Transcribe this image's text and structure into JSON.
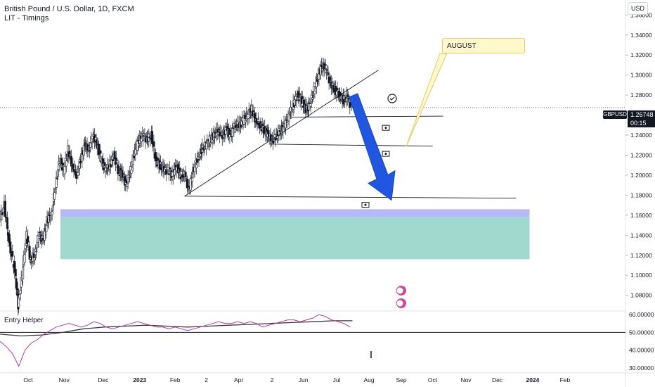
{
  "legend": {
    "title": "British Pound / U.S. Dollar, 1D, FXCM",
    "indicator": "LIT - Timings"
  },
  "sub_legend": "Entry Helper",
  "currency": "USD",
  "symbol_tag": "GBPUSD",
  "last_price": "1.26748",
  "countdown": "00:15",
  "annotation": "AUGUST",
  "colors": {
    "up": "#131722",
    "down": "#131722",
    "demand_zone": "#9dd7cc",
    "zone_top": "#b2b5f5",
    "arrow": "#2157e0",
    "rsi": "#b03a9f",
    "rsi_ma": "#3a3a3a"
  },
  "chart_data": {
    "type": "candlestick",
    "main_axis": {
      "ticks": [
        "1.36000",
        "1.34000",
        "1.32000",
        "1.30000",
        "1.28000",
        "1.26000",
        "1.24000",
        "1.22000",
        "1.20000",
        "1.18000",
        "1.16000",
        "1.14000",
        "1.12000",
        "1.10000",
        "1.08000"
      ],
      "range": [
        1.065,
        1.375
      ]
    },
    "sub_axis": {
      "ticks": [
        "60.00000",
        "50.00000",
        "40.00000",
        "30.00000"
      ],
      "range": [
        28,
        62
      ]
    },
    "x_ticks": [
      "Oct",
      "Nov",
      "Dec",
      "2023",
      "Feb",
      "2",
      "Apr",
      "2",
      "Jun",
      "Jul",
      "Aug",
      "Sep",
      "Oct",
      "Nov",
      "Dec",
      "2024",
      "Feb"
    ],
    "x_range": [
      0,
      60
    ],
    "x_tick_positions": [
      0,
      3.45,
      7.2,
      10.7,
      14.1,
      17.1,
      20.2,
      23.4,
      26.4,
      29.6,
      32.7,
      35.8,
      38.8,
      42.0,
      45.0,
      48.4,
      51.5
    ],
    "price_path": [
      [
        0,
        1.155
      ],
      [
        0.5,
        1.17
      ],
      [
        1,
        1.13
      ],
      [
        1.5,
        1.105
      ],
      [
        1.8,
        1.07
      ],
      [
        2.2,
        1.1
      ],
      [
        2.6,
        1.14
      ],
      [
        3.0,
        1.115
      ],
      [
        3.4,
        1.12
      ],
      [
        3.8,
        1.14
      ],
      [
        4.2,
        1.135
      ],
      [
        4.6,
        1.155
      ],
      [
        5.0,
        1.16
      ],
      [
        5.4,
        1.19
      ],
      [
        5.8,
        1.215
      ],
      [
        6.2,
        1.205
      ],
      [
        6.6,
        1.225
      ],
      [
        7.0,
        1.21
      ],
      [
        7.4,
        1.2
      ],
      [
        7.8,
        1.215
      ],
      [
        8.2,
        1.23
      ],
      [
        8.6,
        1.225
      ],
      [
        9.0,
        1.24
      ],
      [
        9.4,
        1.23
      ],
      [
        9.8,
        1.215
      ],
      [
        10.2,
        1.205
      ],
      [
        10.6,
        1.21
      ],
      [
        11.0,
        1.22
      ],
      [
        11.4,
        1.205
      ],
      [
        11.8,
        1.2
      ],
      [
        12.2,
        1.19
      ],
      [
        12.6,
        1.205
      ],
      [
        13.0,
        1.225
      ],
      [
        13.4,
        1.235
      ],
      [
        13.8,
        1.24
      ],
      [
        14.2,
        1.235
      ],
      [
        14.6,
        1.24
      ],
      [
        15.0,
        1.215
      ],
      [
        15.4,
        1.21
      ],
      [
        15.8,
        1.205
      ],
      [
        16.2,
        1.205
      ],
      [
        16.6,
        1.2
      ],
      [
        17.0,
        1.21
      ],
      [
        17.4,
        1.2
      ],
      [
        17.8,
        1.2
      ],
      [
        18.2,
        1.185
      ],
      [
        18.6,
        1.205
      ],
      [
        19.0,
        1.215
      ],
      [
        19.4,
        1.225
      ],
      [
        19.8,
        1.23
      ],
      [
        20.2,
        1.235
      ],
      [
        20.6,
        1.24
      ],
      [
        21.0,
        1.245
      ],
      [
        21.4,
        1.24
      ],
      [
        21.8,
        1.245
      ],
      [
        22.2,
        1.24
      ],
      [
        22.6,
        1.25
      ],
      [
        23.0,
        1.25
      ],
      [
        23.4,
        1.255
      ],
      [
        23.8,
        1.26
      ],
      [
        24.2,
        1.265
      ],
      [
        24.6,
        1.255
      ],
      [
        25.0,
        1.25
      ],
      [
        25.4,
        1.245
      ],
      [
        25.8,
        1.24
      ],
      [
        26.2,
        1.235
      ],
      [
        26.6,
        1.24
      ],
      [
        27.0,
        1.245
      ],
      [
        27.4,
        1.25
      ],
      [
        27.8,
        1.26
      ],
      [
        28.2,
        1.27
      ],
      [
        28.6,
        1.28
      ],
      [
        29.0,
        1.275
      ],
      [
        29.4,
        1.265
      ],
      [
        29.8,
        1.27
      ],
      [
        30.2,
        1.285
      ],
      [
        30.6,
        1.3
      ],
      [
        31.0,
        1.31
      ],
      [
        31.4,
        1.305
      ],
      [
        31.8,
        1.29
      ],
      [
        32.2,
        1.285
      ],
      [
        32.6,
        1.28
      ],
      [
        33.0,
        1.275
      ],
      [
        33.4,
        1.278
      ],
      [
        33.8,
        1.2675
      ]
    ],
    "rsi_path": [
      [
        0,
        45
      ],
      [
        0.6,
        42
      ],
      [
        1.2,
        38
      ],
      [
        1.8,
        31
      ],
      [
        2.4,
        40
      ],
      [
        3.0,
        44
      ],
      [
        3.6,
        46
      ],
      [
        4.2,
        49
      ],
      [
        4.8,
        51
      ],
      [
        5.4,
        53
      ],
      [
        6.0,
        54
      ],
      [
        6.6,
        55
      ],
      [
        7.2,
        54
      ],
      [
        7.8,
        53
      ],
      [
        8.4,
        54
      ],
      [
        9.0,
        56
      ],
      [
        9.6,
        55
      ],
      [
        10.2,
        53
      ],
      [
        10.8,
        52
      ],
      [
        11.4,
        53
      ],
      [
        12.0,
        54
      ],
      [
        12.6,
        55
      ],
      [
        13.2,
        56
      ],
      [
        13.8,
        55
      ],
      [
        14.4,
        54
      ],
      [
        15.0,
        53
      ],
      [
        15.6,
        53
      ],
      [
        16.2,
        52
      ],
      [
        16.8,
        53
      ],
      [
        17.4,
        52
      ],
      [
        18.0,
        51
      ],
      [
        18.6,
        52
      ],
      [
        19.2,
        53
      ],
      [
        19.8,
        54
      ],
      [
        20.4,
        55
      ],
      [
        21.0,
        56
      ],
      [
        21.6,
        55
      ],
      [
        22.2,
        55
      ],
      [
        22.8,
        56
      ],
      [
        23.4,
        55
      ],
      [
        24.0,
        56
      ],
      [
        24.6,
        55
      ],
      [
        25.2,
        53
      ],
      [
        25.8,
        54
      ],
      [
        26.4,
        55
      ],
      [
        27.0,
        56
      ],
      [
        27.6,
        57
      ],
      [
        28.2,
        57
      ],
      [
        28.8,
        56
      ],
      [
        29.4,
        57
      ],
      [
        30.0,
        58
      ],
      [
        30.6,
        60
      ],
      [
        31.2,
        59
      ],
      [
        31.8,
        57
      ],
      [
        32.4,
        56
      ],
      [
        33.0,
        55
      ],
      [
        33.6,
        53
      ]
    ],
    "rsi_ma_path": [
      [
        0,
        49
      ],
      [
        2,
        48
      ],
      [
        4,
        48.5
      ],
      [
        6,
        50
      ],
      [
        8,
        52
      ],
      [
        10,
        53
      ],
      [
        12,
        53.5
      ],
      [
        14,
        54
      ],
      [
        16,
        53.5
      ],
      [
        18,
        53
      ],
      [
        20,
        53.5
      ],
      [
        22,
        54
      ],
      [
        24,
        54.5
      ],
      [
        26,
        55
      ],
      [
        28,
        55.5
      ],
      [
        30,
        56
      ],
      [
        32,
        56.5
      ],
      [
        33.8,
        56.5
      ]
    ],
    "trendlines": [
      {
        "points": [
          [
            17.7,
            1.179
          ],
          [
            36.3,
            1.305
          ]
        ]
      },
      {
        "points": [
          [
            17.7,
            1.179
          ],
          [
            49.5,
            1.177
          ]
        ]
      },
      {
        "points": [
          [
            25.8,
            1.231
          ],
          [
            41.5,
            1.229
          ]
        ]
      },
      {
        "points": [
          [
            28.0,
            1.258
          ],
          [
            42.5,
            1.259
          ]
        ]
      }
    ],
    "zones": [
      {
        "from_x": 5.8,
        "to_x": 50.8,
        "from_y": 1.116,
        "to_y": 1.158
      },
      {
        "from_x": 5.8,
        "to_x": 50.8,
        "from_y": 1.158,
        "to_y": 1.166
      }
    ],
    "markers_y": [
      1.254,
      1.228,
      1.177
    ],
    "arrow": {
      "from": [
        33.9,
        1.278
      ],
      "to": [
        36.0,
        1.175
      ]
    },
    "rsi_reference": 50
  }
}
